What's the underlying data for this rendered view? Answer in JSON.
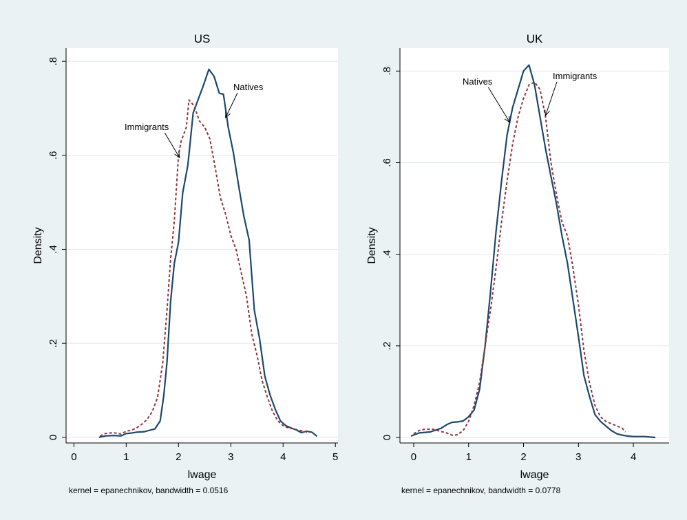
{
  "chart_data": [
    {
      "type": "line",
      "title": "US",
      "xlabel": "lwage",
      "ylabel": "Density",
      "note": "kernel = epanechnikov, bandwidth = 0.0516",
      "xlim": [
        -0.15,
        5.05
      ],
      "ylim": [
        -0.012,
        0.828
      ],
      "xticks": [
        0,
        1,
        2,
        3,
        4,
        5
      ],
      "xtick_labels": [
        "0",
        "1",
        "2",
        "3",
        "4",
        "5"
      ],
      "yticks": [
        0,
        0.2,
        0.4,
        0.6,
        0.8
      ],
      "ytick_labels": [
        "0",
        ".2",
        ".4",
        ".6",
        ".8"
      ],
      "grid": true,
      "legend": "none",
      "series": [
        {
          "name": "Natives",
          "color": "#1a476f",
          "dash": "solid",
          "x": [
            0.48,
            0.6,
            0.75,
            0.9,
            1.0,
            1.1,
            1.2,
            1.35,
            1.45,
            1.55,
            1.65,
            1.72,
            1.78,
            1.85,
            1.92,
            2.0,
            2.08,
            2.18,
            2.28,
            2.38,
            2.48,
            2.58,
            2.68,
            2.78,
            2.86,
            2.95,
            3.05,
            3.15,
            3.25,
            3.35,
            3.45,
            3.55,
            3.65,
            3.75,
            3.85,
            3.95,
            4.05,
            4.15,
            4.25,
            4.35,
            4.45,
            4.55,
            4.65
          ],
          "y": [
            0.0,
            0.003,
            0.004,
            0.003,
            0.008,
            0.009,
            0.011,
            0.012,
            0.015,
            0.018,
            0.035,
            0.09,
            0.16,
            0.29,
            0.37,
            0.415,
            0.52,
            0.58,
            0.69,
            0.72,
            0.75,
            0.783,
            0.768,
            0.732,
            0.73,
            0.66,
            0.605,
            0.535,
            0.47,
            0.42,
            0.27,
            0.21,
            0.13,
            0.09,
            0.06,
            0.035,
            0.025,
            0.02,
            0.016,
            0.01,
            0.013,
            0.011,
            0.002
          ]
        },
        {
          "name": "Immigrants",
          "color": "#90353b",
          "dash": "dashed",
          "x": [
            0.5,
            0.6,
            0.75,
            0.9,
            1.0,
            1.1,
            1.2,
            1.3,
            1.4,
            1.5,
            1.6,
            1.7,
            1.78,
            1.85,
            1.92,
            2.0,
            2.05,
            2.15,
            2.2,
            2.3,
            2.4,
            2.5,
            2.6,
            2.7,
            2.8,
            2.9,
            3.0,
            3.1,
            3.2,
            3.3,
            3.4,
            3.5,
            3.6,
            3.7,
            3.8,
            3.9,
            4.0,
            4.1,
            4.2,
            4.3,
            4.4,
            4.5
          ],
          "y": [
            0.003,
            0.008,
            0.01,
            0.007,
            0.013,
            0.015,
            0.02,
            0.028,
            0.038,
            0.055,
            0.085,
            0.16,
            0.27,
            0.38,
            0.46,
            0.6,
            0.63,
            0.66,
            0.718,
            0.705,
            0.673,
            0.66,
            0.635,
            0.575,
            0.51,
            0.475,
            0.43,
            0.4,
            0.35,
            0.3,
            0.22,
            0.175,
            0.12,
            0.085,
            0.055,
            0.035,
            0.025,
            0.02,
            0.018,
            0.015,
            0.013,
            0.01
          ]
        }
      ],
      "annotations": [
        {
          "text": "Natives",
          "target_x": 2.9,
          "target_y": 0.68
        },
        {
          "text": "Immigrants",
          "target_x": 2.02,
          "target_y": 0.595
        }
      ]
    },
    {
      "type": "line",
      "title": "UK",
      "xlabel": "lwage",
      "ylabel": "Density",
      "note": "kernel = epanechnikov, bandwidth = 0.0778",
      "xlim": [
        -0.25,
        4.65
      ],
      "ylim": [
        -0.012,
        0.85
      ],
      "xticks": [
        0,
        1,
        2,
        3,
        4
      ],
      "xtick_labels": [
        "0",
        "1",
        "2",
        "3",
        "4"
      ],
      "yticks": [
        0,
        0.2,
        0.4,
        0.6,
        0.8
      ],
      "ytick_labels": [
        "0",
        ".2",
        ".4",
        ".6",
        ".8"
      ],
      "grid": true,
      "legend": "none",
      "series": [
        {
          "name": "Natives",
          "color": "#1a476f",
          "dash": "solid",
          "x": [
            -0.05,
            0.1,
            0.3,
            0.5,
            0.6,
            0.7,
            0.8,
            0.9,
            1.0,
            1.1,
            1.2,
            1.3,
            1.4,
            1.5,
            1.6,
            1.7,
            1.8,
            1.9,
            2.0,
            2.1,
            2.2,
            2.3,
            2.4,
            2.5,
            2.6,
            2.7,
            2.8,
            2.9,
            3.0,
            3.1,
            3.2,
            3.3,
            3.4,
            3.5,
            3.6,
            3.7,
            3.8,
            3.9,
            4.0,
            4.2,
            4.4
          ],
          "y": [
            0.003,
            0.01,
            0.012,
            0.02,
            0.028,
            0.033,
            0.034,
            0.036,
            0.045,
            0.06,
            0.105,
            0.2,
            0.32,
            0.45,
            0.56,
            0.66,
            0.72,
            0.76,
            0.8,
            0.813,
            0.77,
            0.7,
            0.63,
            0.57,
            0.51,
            0.44,
            0.38,
            0.3,
            0.22,
            0.135,
            0.09,
            0.05,
            0.035,
            0.025,
            0.015,
            0.008,
            0.005,
            0.003,
            0.002,
            0.002,
            0.0
          ]
        },
        {
          "name": "Immigrants",
          "color": "#90353b",
          "dash": "dashed",
          "x": [
            0.0,
            0.1,
            0.2,
            0.35,
            0.5,
            0.6,
            0.7,
            0.8,
            0.9,
            1.0,
            1.1,
            1.2,
            1.3,
            1.4,
            1.5,
            1.6,
            1.7,
            1.8,
            1.9,
            2.0,
            2.1,
            2.2,
            2.3,
            2.4,
            2.5,
            2.6,
            2.7,
            2.8,
            2.9,
            3.0,
            3.1,
            3.2,
            3.3,
            3.4,
            3.5,
            3.6,
            3.7,
            3.8,
            3.85
          ],
          "y": [
            0.008,
            0.015,
            0.018,
            0.018,
            0.013,
            0.01,
            0.005,
            0.006,
            0.015,
            0.035,
            0.07,
            0.12,
            0.2,
            0.28,
            0.37,
            0.47,
            0.56,
            0.64,
            0.7,
            0.74,
            0.77,
            0.776,
            0.76,
            0.7,
            0.6,
            0.53,
            0.47,
            0.44,
            0.37,
            0.29,
            0.19,
            0.12,
            0.07,
            0.045,
            0.035,
            0.03,
            0.025,
            0.02,
            0.012
          ]
        }
      ],
      "annotations": [
        {
          "text": "Natives",
          "target_x": 1.75,
          "target_y": 0.688
        },
        {
          "text": "Immigrants",
          "target_x": 2.4,
          "target_y": 0.703
        }
      ]
    }
  ]
}
